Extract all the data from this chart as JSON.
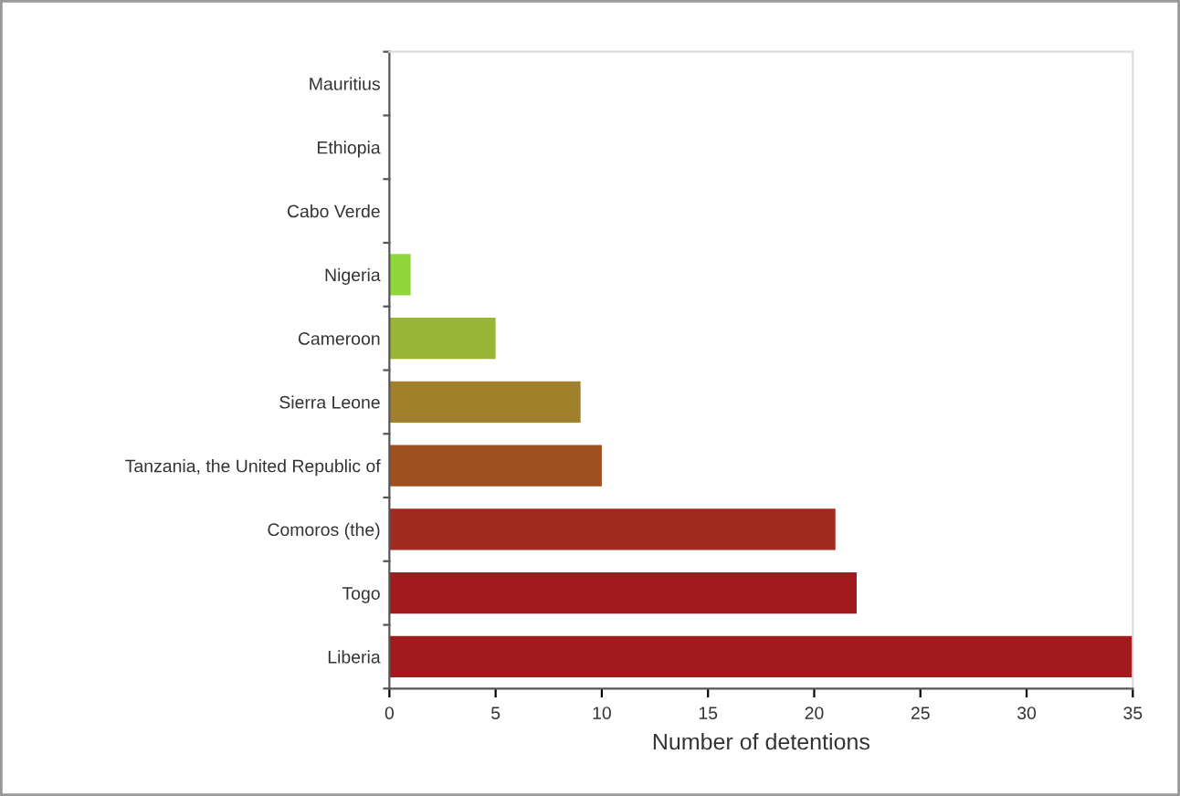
{
  "chart_data": {
    "type": "bar",
    "orientation": "horizontal",
    "xlabel": "Number of detentions",
    "categories": [
      "Mauritius",
      "Ethiopia",
      "Cabo Verde",
      "Nigeria",
      "Cameroon",
      "Sierra Leone",
      "Tanzania, the United Republic of",
      "Comoros (the)",
      "Togo",
      "Liberia"
    ],
    "values": [
      0,
      0,
      0,
      1,
      5,
      9,
      10,
      21,
      22,
      35
    ],
    "colors": [
      "#a01a1e",
      "#a01a1e",
      "#a01a1e",
      "#8fd63a",
      "#9ab535",
      "#a0802a",
      "#a0501e",
      "#a02a1e",
      "#a01a1e",
      "#a01a1e"
    ],
    "xlim": [
      0,
      35
    ],
    "xticks": [
      0,
      5,
      10,
      15,
      20,
      25,
      30,
      35
    ],
    "grid": false,
    "legend": false
  }
}
